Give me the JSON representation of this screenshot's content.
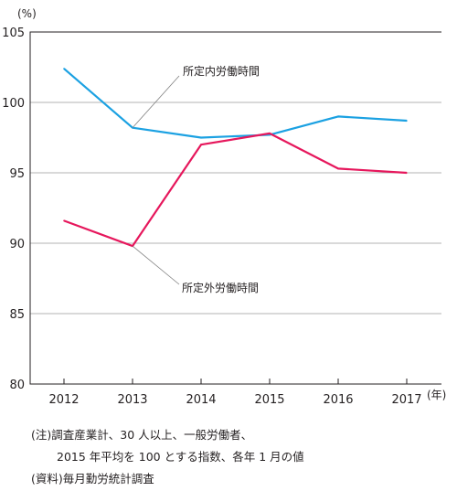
{
  "chart_data": {
    "type": "line",
    "title": "",
    "ylabel": "(%)",
    "xlabel": "(年)",
    "categories": [
      "2012",
      "2013",
      "2014",
      "2015",
      "2016",
      "2017"
    ],
    "ylim": [
      80,
      105
    ],
    "yticks": [
      80,
      85,
      90,
      95,
      100,
      105
    ],
    "grid": true,
    "series": [
      {
        "name": "所定内労働時間",
        "color": "#1ba1e2",
        "values": [
          102.4,
          98.2,
          97.5,
          97.7,
          99.0,
          98.7
        ]
      },
      {
        "name": "所定外労働時間",
        "color": "#e6175c",
        "values": [
          91.6,
          89.8,
          97.0,
          97.8,
          95.3,
          95.0
        ]
      }
    ]
  },
  "notes": {
    "line1": "(注)調査産業計、30 人以上、一般労働者、",
    "line2": "2015 年平均を 100 とする指数、各年 1 月の値",
    "line3": "(資料)毎月勤労統計調査"
  }
}
